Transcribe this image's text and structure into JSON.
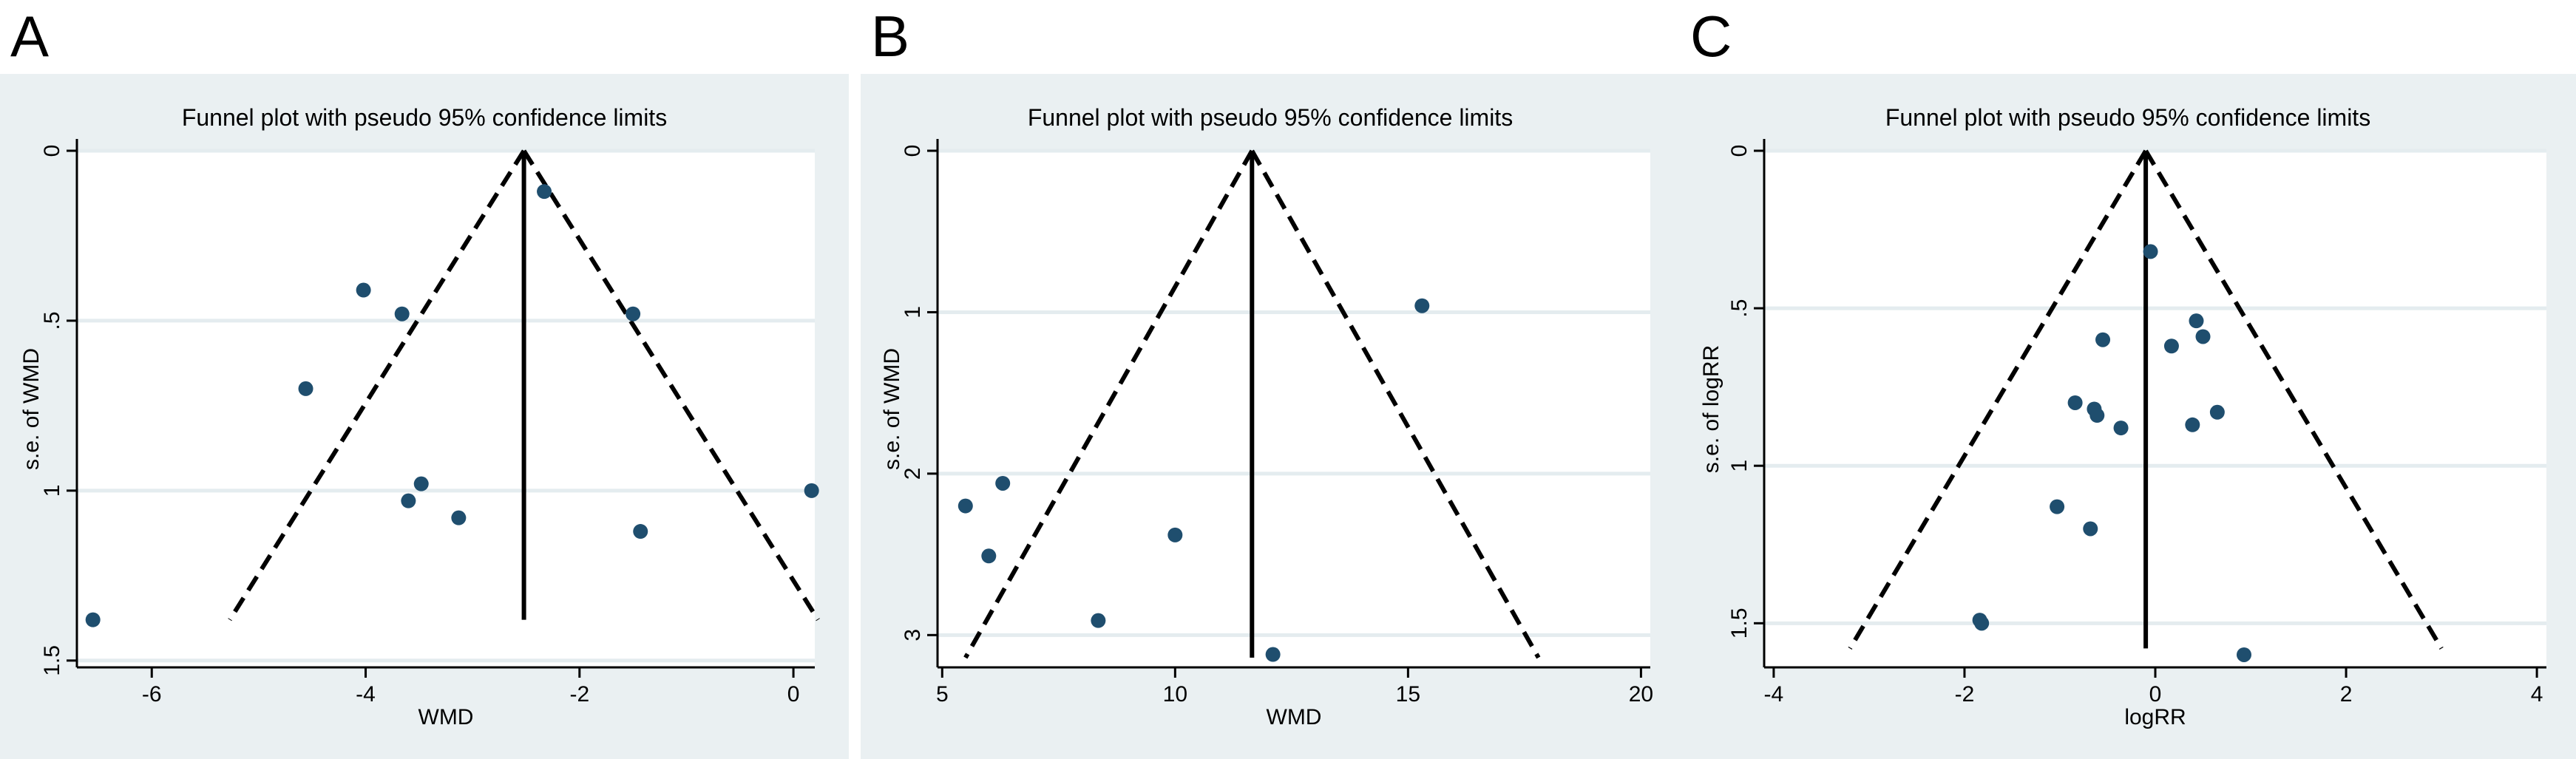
{
  "panels": [
    {
      "letter": "A"
    },
    {
      "letter": "B"
    },
    {
      "letter": "C"
    }
  ],
  "chart_data": [
    {
      "type": "scatter",
      "title": "Funnel plot with pseudo 95% confidence limits",
      "xlabel": "WMD",
      "ylabel": "s.e. of WMD",
      "xlim": [
        -6.7,
        0.2
      ],
      "ylim": [
        0,
        1.52
      ],
      "y_reversed": true,
      "xticks": [
        -6,
        -4,
        -2,
        0
      ],
      "xtick_labels": [
        "-6",
        "-4",
        "-2",
        "0"
      ],
      "yticks": [
        0,
        0.5,
        1,
        1.5
      ],
      "ytick_labels": [
        "0",
        ".5",
        "1",
        "1.5"
      ],
      "pooled_estimate": -2.52,
      "funnel_apex": [
        -2.52,
        0
      ],
      "funnel_base": [
        [
          -5.27,
          1.38
        ],
        [
          0.23,
          1.38
        ]
      ],
      "points": [
        {
          "x": -2.33,
          "y": 0.12
        },
        {
          "x": -4.02,
          "y": 0.41
        },
        {
          "x": -3.66,
          "y": 0.48
        },
        {
          "x": -1.5,
          "y": 0.48
        },
        {
          "x": -4.56,
          "y": 0.7
        },
        {
          "x": -3.48,
          "y": 0.98
        },
        {
          "x": -3.6,
          "y": 1.03
        },
        {
          "x": -3.13,
          "y": 1.08
        },
        {
          "x": -1.43,
          "y": 1.12
        },
        {
          "x": 0.17,
          "y": 1.0
        },
        {
          "x": -6.55,
          "y": 1.38
        }
      ]
    },
    {
      "type": "scatter",
      "title": "Funnel plot with pseudo 95% confidence limits",
      "xlabel": "WMD",
      "ylabel": "s.e. of WMD",
      "xlim": [
        4.9,
        20.2
      ],
      "ylim": [
        0,
        3.2
      ],
      "y_reversed": true,
      "xticks": [
        5,
        10,
        15,
        20
      ],
      "xtick_labels": [
        "5",
        "10",
        "15",
        "20"
      ],
      "yticks": [
        0,
        1,
        2,
        3
      ],
      "ytick_labels": [
        "0",
        "1",
        "2",
        "3"
      ],
      "pooled_estimate": 11.65,
      "funnel_apex": [
        11.65,
        0
      ],
      "funnel_base": [
        [
          5.5,
          3.14
        ],
        [
          17.8,
          3.14
        ]
      ],
      "points": [
        {
          "x": 15.3,
          "y": 0.96
        },
        {
          "x": 6.3,
          "y": 2.06
        },
        {
          "x": 5.5,
          "y": 2.2
        },
        {
          "x": 10.0,
          "y": 2.38
        },
        {
          "x": 6.0,
          "y": 2.51
        },
        {
          "x": 8.35,
          "y": 2.91
        },
        {
          "x": 12.1,
          "y": 3.12
        }
      ]
    },
    {
      "type": "scatter",
      "title": "Funnel plot with pseudo 95% confidence limits",
      "xlabel": "logRR",
      "ylabel": "s.e. of logRR",
      "xlim": [
        -4.1,
        4.1
      ],
      "ylim": [
        0,
        1.64
      ],
      "y_reversed": true,
      "xticks": [
        -4,
        -2,
        0,
        2,
        4
      ],
      "xtick_labels": [
        "-4",
        "-2",
        "0",
        "2",
        "4"
      ],
      "yticks": [
        0,
        0.5,
        1,
        1.5
      ],
      "ytick_labels": [
        "0",
        ".5",
        "1",
        "1.5"
      ],
      "pooled_estimate": -0.1,
      "funnel_apex": [
        -0.1,
        0
      ],
      "funnel_base": [
        [
          -3.2,
          1.58
        ],
        [
          3.0,
          1.58
        ]
      ],
      "points": [
        {
          "x": -0.05,
          "y": 0.32
        },
        {
          "x": 0.43,
          "y": 0.54
        },
        {
          "x": 0.5,
          "y": 0.59
        },
        {
          "x": 0.17,
          "y": 0.62
        },
        {
          "x": -0.55,
          "y": 0.6
        },
        {
          "x": -0.84,
          "y": 0.8
        },
        {
          "x": -0.64,
          "y": 0.82
        },
        {
          "x": -0.61,
          "y": 0.84
        },
        {
          "x": -0.36,
          "y": 0.88
        },
        {
          "x": 0.39,
          "y": 0.87
        },
        {
          "x": 0.65,
          "y": 0.83
        },
        {
          "x": -1.03,
          "y": 1.13
        },
        {
          "x": -0.68,
          "y": 1.2
        },
        {
          "x": -1.84,
          "y": 1.49
        },
        {
          "x": -1.82,
          "y": 1.5
        },
        {
          "x": 0.93,
          "y": 1.6
        }
      ]
    }
  ]
}
